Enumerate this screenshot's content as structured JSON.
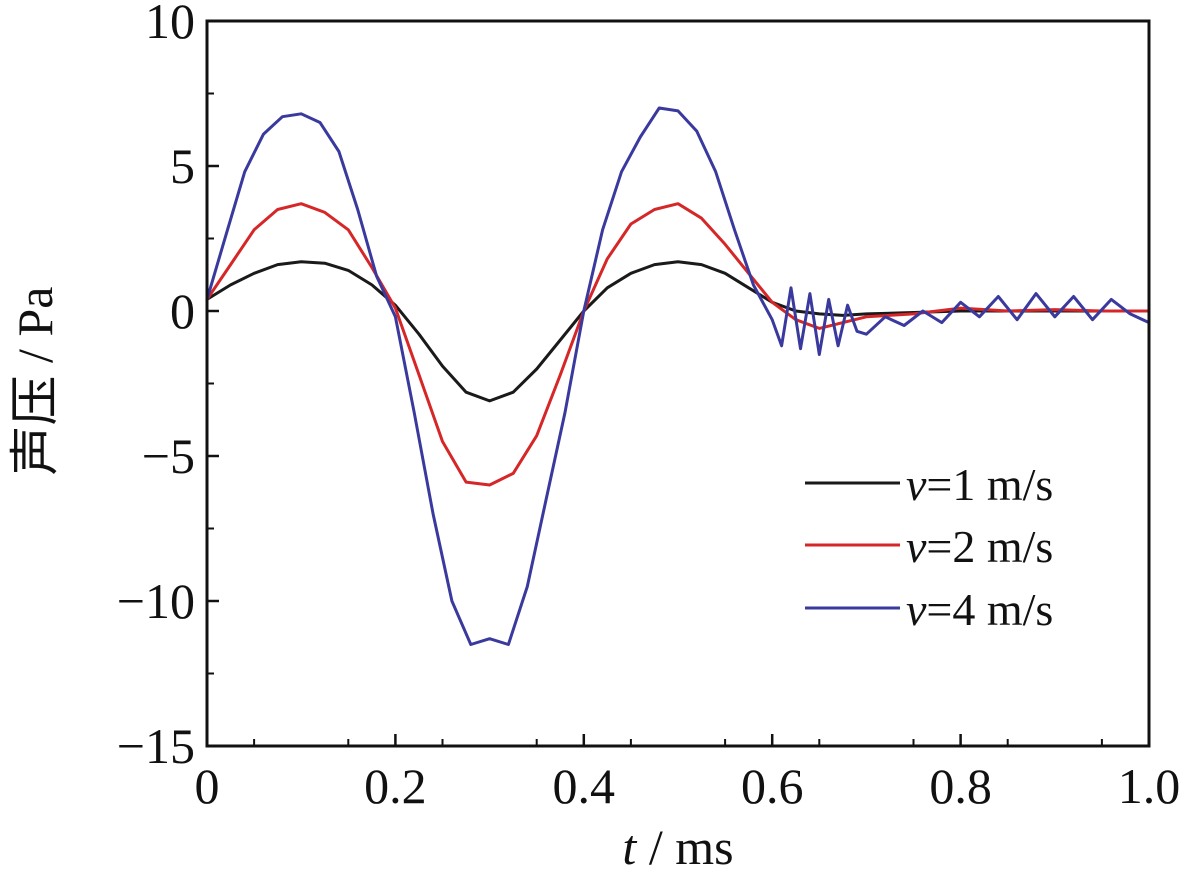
{
  "chart_data": {
    "type": "line",
    "xlabel": "t / ms",
    "xlabel_var": "t",
    "xlabel_unit": " / ms",
    "ylabel": "声压 / Pa",
    "xlim": [
      0,
      1.0
    ],
    "ylim": [
      -15,
      10
    ],
    "xticks": [
      0,
      0.2,
      0.4,
      0.6,
      0.8,
      1.0
    ],
    "xtick_labels": [
      "0",
      "0.2",
      "0.4",
      "0.6",
      "0.8",
      "1.0"
    ],
    "yticks": [
      10,
      5,
      0,
      -5,
      -10,
      -15
    ],
    "ytick_labels": [
      "10",
      "5",
      "0",
      "−5",
      "−10",
      "−15"
    ],
    "grid": false,
    "legend_position": "lower-right",
    "series": [
      {
        "name": "v=1 m/s",
        "name_var": "v",
        "name_rest": "=1 m/s",
        "color": "#1a1a1a",
        "x": [
          0,
          0.025,
          0.05,
          0.075,
          0.1,
          0.125,
          0.15,
          0.175,
          0.2,
          0.225,
          0.25,
          0.275,
          0.3,
          0.325,
          0.35,
          0.375,
          0.4,
          0.425,
          0.45,
          0.475,
          0.5,
          0.525,
          0.55,
          0.575,
          0.6,
          0.625,
          0.65,
          0.675,
          0.7,
          0.75,
          0.8,
          0.85,
          0.9,
          0.95,
          1.0
        ],
        "values": [
          0.4,
          0.9,
          1.3,
          1.6,
          1.7,
          1.65,
          1.4,
          0.9,
          0.2,
          -0.8,
          -1.9,
          -2.8,
          -3.1,
          -2.8,
          -2.0,
          -1.0,
          0.0,
          0.8,
          1.3,
          1.6,
          1.7,
          1.6,
          1.3,
          0.8,
          0.3,
          0.0,
          -0.1,
          -0.15,
          -0.1,
          -0.05,
          0.0,
          0.0,
          0.0,
          0.0,
          0.0
        ]
      },
      {
        "name": "v=2 m/s",
        "name_var": "v",
        "name_rest": "=2 m/s",
        "color": "#d62728",
        "x": [
          0,
          0.025,
          0.05,
          0.075,
          0.1,
          0.125,
          0.15,
          0.175,
          0.2,
          0.225,
          0.25,
          0.275,
          0.3,
          0.325,
          0.35,
          0.375,
          0.4,
          0.425,
          0.45,
          0.475,
          0.5,
          0.525,
          0.55,
          0.575,
          0.6,
          0.625,
          0.65,
          0.675,
          0.7,
          0.75,
          0.8,
          0.85,
          0.9,
          0.95,
          1.0
        ],
        "values": [
          0.4,
          1.6,
          2.8,
          3.5,
          3.7,
          3.4,
          2.8,
          1.5,
          0.1,
          -2.2,
          -4.5,
          -5.9,
          -6.0,
          -5.6,
          -4.3,
          -2.2,
          0.0,
          1.8,
          3.0,
          3.5,
          3.7,
          3.2,
          2.3,
          1.3,
          0.3,
          -0.3,
          -0.6,
          -0.4,
          -0.2,
          -0.1,
          0.1,
          0.0,
          0.05,
          0.0,
          0.0
        ]
      },
      {
        "name": "v=4 m/s",
        "name_var": "v",
        "name_rest": "=4 m/s",
        "color": "#3a3a9e",
        "x": [
          0,
          0.02,
          0.04,
          0.06,
          0.08,
          0.1,
          0.12,
          0.14,
          0.16,
          0.18,
          0.2,
          0.22,
          0.24,
          0.26,
          0.28,
          0.3,
          0.32,
          0.34,
          0.36,
          0.38,
          0.4,
          0.42,
          0.44,
          0.46,
          0.48,
          0.5,
          0.52,
          0.54,
          0.56,
          0.58,
          0.6,
          0.61,
          0.62,
          0.63,
          0.64,
          0.65,
          0.66,
          0.67,
          0.68,
          0.69,
          0.7,
          0.72,
          0.74,
          0.76,
          0.78,
          0.8,
          0.82,
          0.84,
          0.86,
          0.88,
          0.9,
          0.92,
          0.94,
          0.96,
          0.98,
          1.0
        ],
        "values": [
          0.4,
          2.6,
          4.8,
          6.1,
          6.7,
          6.8,
          6.5,
          5.5,
          3.5,
          1.2,
          -0.2,
          -3.5,
          -7.0,
          -10.0,
          -11.5,
          -11.3,
          -11.5,
          -9.5,
          -6.5,
          -3.5,
          0.0,
          2.8,
          4.8,
          6.0,
          7.0,
          6.9,
          6.2,
          4.8,
          2.8,
          0.9,
          -0.3,
          -1.2,
          0.8,
          -1.3,
          0.6,
          -1.5,
          0.4,
          -1.2,
          0.2,
          -0.7,
          -0.8,
          -0.2,
          -0.5,
          0.0,
          -0.4,
          0.3,
          -0.2,
          0.5,
          -0.3,
          0.6,
          -0.2,
          0.5,
          -0.3,
          0.4,
          -0.1,
          -0.4
        ]
      }
    ]
  }
}
